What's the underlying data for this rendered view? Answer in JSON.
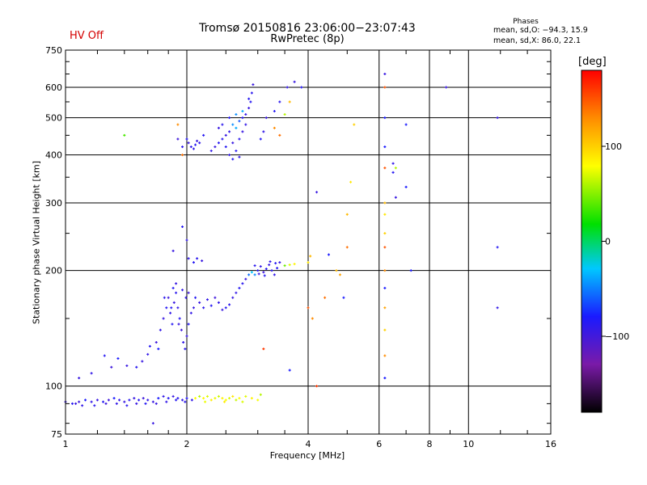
{
  "status": {
    "hv_label": "HV Off"
  },
  "header": {
    "title_line1": "Tromsø 20150816 23:06:00−23:07:43",
    "title_line2": "RwPretec (8p)"
  },
  "phase_box": {
    "title": "Phases",
    "line1": "mean, sd,O: −94.3, 15.9",
    "line2": "mean, sd,X:  86.0, 22.1"
  },
  "colorbar": {
    "title": "[deg]",
    "range": [
      -180,
      180
    ],
    "ticks": [
      "100",
      "0",
      "−100"
    ],
    "tick_values": [
      100,
      0,
      -100
    ]
  },
  "chart_data": {
    "type": "scatter",
    "title": "Tromsø 20150816 23:06:00−23:07:43",
    "subtitle": "RwPretec (8p)",
    "xlabel": "Frequency [MHz]",
    "ylabel": "Stationary phase Virtual Height [km]",
    "xscale": "log",
    "yscale": "log",
    "xlim": [
      1,
      16
    ],
    "ylim": [
      75,
      750
    ],
    "xticks": [
      1,
      2,
      4,
      6,
      8,
      10,
      16
    ],
    "xtick_labels": [
      "1",
      "2",
      "4",
      "6",
      "8",
      "10",
      "16"
    ],
    "yticks": [
      75,
      100,
      200,
      300,
      400,
      500,
      600,
      750
    ],
    "ytick_labels": [
      "75",
      "100",
      "200",
      "300",
      "400",
      "500",
      "600",
      "750"
    ],
    "grid": true,
    "color_variable": "phase [deg]",
    "points": [
      [
        1.0,
        91,
        -110
      ],
      [
        1.04,
        90,
        -105
      ],
      [
        1.08,
        91,
        -112
      ],
      [
        1.12,
        92,
        -100
      ],
      [
        1.16,
        91,
        -108
      ],
      [
        1.2,
        92,
        -110
      ],
      [
        1.24,
        91,
        -104
      ],
      [
        1.28,
        92,
        -112
      ],
      [
        1.32,
        93,
        -100
      ],
      [
        1.36,
        92,
        -108
      ],
      [
        1.4,
        91,
        -110
      ],
      [
        1.44,
        92,
        -105
      ],
      [
        1.48,
        93,
        -110
      ],
      [
        1.52,
        92,
        -104
      ],
      [
        1.56,
        93,
        -112
      ],
      [
        1.6,
        92,
        -108
      ],
      [
        1.65,
        91,
        -110
      ],
      [
        1.7,
        93,
        -100
      ],
      [
        1.75,
        94,
        -108
      ],
      [
        1.8,
        93,
        -104
      ],
      [
        1.85,
        94,
        -110
      ],
      [
        1.9,
        93,
        -106
      ],
      [
        1.95,
        92,
        -108
      ],
      [
        2.0,
        93,
        -104
      ],
      [
        1.06,
        90,
        -110
      ],
      [
        1.1,
        89,
        -108
      ],
      [
        1.18,
        89,
        -106
      ],
      [
        1.26,
        90,
        -112
      ],
      [
        1.34,
        90,
        -108
      ],
      [
        1.42,
        89,
        -105
      ],
      [
        1.5,
        90,
        -110
      ],
      [
        1.58,
        90,
        -104
      ],
      [
        1.68,
        90,
        -110
      ],
      [
        1.78,
        91,
        -108
      ],
      [
        1.88,
        92,
        -104
      ],
      [
        1.98,
        91,
        -106
      ],
      [
        2.06,
        92,
        -108
      ],
      [
        2.1,
        93,
        80
      ],
      [
        2.15,
        94,
        60
      ],
      [
        2.2,
        93,
        82
      ],
      [
        2.25,
        94,
        70
      ],
      [
        2.3,
        92,
        88
      ],
      [
        2.35,
        93,
        75
      ],
      [
        2.4,
        94,
        65
      ],
      [
        2.45,
        93,
        85
      ],
      [
        2.5,
        92,
        78
      ],
      [
        2.55,
        93,
        70
      ],
      [
        2.6,
        94,
        90
      ],
      [
        2.65,
        92,
        65
      ],
      [
        2.7,
        93,
        80
      ],
      [
        2.8,
        94,
        72
      ],
      [
        2.9,
        93,
        85
      ],
      [
        3.0,
        92,
        78
      ],
      [
        3.05,
        95,
        60
      ],
      [
        2.22,
        91,
        75
      ],
      [
        2.48,
        91,
        88
      ],
      [
        2.75,
        91,
        70
      ],
      [
        1.65,
        80,
        -110
      ],
      [
        1.08,
        105,
        -110
      ],
      [
        1.16,
        108,
        -108
      ],
      [
        1.25,
        120,
        -104
      ],
      [
        1.3,
        112,
        -112
      ],
      [
        1.35,
        118,
        -100
      ],
      [
        1.42,
        113,
        -110
      ],
      [
        1.5,
        112,
        -105
      ],
      [
        1.55,
        116,
        -110
      ],
      [
        1.6,
        121,
        -108
      ],
      [
        1.62,
        127,
        -104
      ],
      [
        1.68,
        130,
        -112
      ],
      [
        1.7,
        125,
        -100
      ],
      [
        1.72,
        140,
        -108
      ],
      [
        1.75,
        150,
        -110
      ],
      [
        1.78,
        160,
        -104
      ],
      [
        1.8,
        170,
        -112
      ],
      [
        1.82,
        155,
        -108
      ],
      [
        1.84,
        145,
        -104
      ],
      [
        1.86,
        165,
        -110
      ],
      [
        1.88,
        175,
        -106
      ],
      [
        1.9,
        160,
        -108
      ],
      [
        1.92,
        150,
        -104
      ],
      [
        1.94,
        140,
        -112
      ],
      [
        1.96,
        130,
        -108
      ],
      [
        1.98,
        125,
        -106
      ],
      [
        2.0,
        135,
        -110
      ],
      [
        2.02,
        145,
        -104
      ],
      [
        2.05,
        155,
        -108
      ],
      [
        2.08,
        160,
        -110
      ],
      [
        1.76,
        170,
        -106
      ],
      [
        1.83,
        160,
        -104
      ],
      [
        1.91,
        145,
        -110
      ],
      [
        1.99,
        170,
        -108
      ],
      [
        1.85,
        180,
        -104
      ],
      [
        1.88,
        185,
        -110
      ],
      [
        1.95,
        178,
        -108
      ],
      [
        2.02,
        175,
        -112
      ],
      [
        2.1,
        170,
        -104
      ],
      [
        2.15,
        165,
        -110
      ],
      [
        2.2,
        160,
        -106
      ],
      [
        2.25,
        168,
        -108
      ],
      [
        2.3,
        162,
        -104
      ],
      [
        2.35,
        170,
        -112
      ],
      [
        2.4,
        165,
        -108
      ],
      [
        2.45,
        158,
        -110
      ],
      [
        2.5,
        160,
        -104
      ],
      [
        2.55,
        163,
        -106
      ],
      [
        2.6,
        170,
        -110
      ],
      [
        2.65,
        175,
        -108
      ],
      [
        2.7,
        180,
        -104
      ],
      [
        2.75,
        185,
        -106
      ],
      [
        2.8,
        190,
        -110
      ],
      [
        2.85,
        195,
        -70
      ],
      [
        2.9,
        198,
        -40
      ],
      [
        2.95,
        195,
        -60
      ],
      [
        3.0,
        200,
        -104
      ],
      [
        3.05,
        205,
        -108
      ],
      [
        3.1,
        198,
        -112
      ],
      [
        3.15,
        202,
        -104
      ],
      [
        3.2,
        207,
        -110
      ],
      [
        3.25,
        200,
        -106
      ],
      [
        3.3,
        195,
        -108
      ],
      [
        3.35,
        203,
        -104
      ],
      [
        3.4,
        210,
        -110
      ],
      [
        3.5,
        206,
        40
      ],
      [
        3.6,
        207,
        70
      ],
      [
        3.7,
        208,
        85
      ],
      [
        2.95,
        206,
        -106
      ],
      [
        3.02,
        196,
        -110
      ],
      [
        3.12,
        194,
        -104
      ],
      [
        3.22,
        211,
        -108
      ],
      [
        3.32,
        209,
        -104
      ],
      [
        1.85,
        225,
        -110
      ],
      [
        2.02,
        215,
        -108
      ],
      [
        2.08,
        210,
        -104
      ],
      [
        2.12,
        215,
        -106
      ],
      [
        2.18,
        212,
        -110
      ],
      [
        1.95,
        260,
        -104
      ],
      [
        2.0,
        240,
        -108
      ],
      [
        2.0,
        440,
        -104
      ],
      [
        2.02,
        430,
        -110
      ],
      [
        2.05,
        420,
        -106
      ],
      [
        2.08,
        415,
        -108
      ],
      [
        2.1,
        425,
        -104
      ],
      [
        2.12,
        435,
        -110
      ],
      [
        2.15,
        430,
        -108
      ],
      [
        2.2,
        450,
        -104
      ],
      [
        1.9,
        440,
        -112
      ],
      [
        1.95,
        420,
        -106
      ],
      [
        2.3,
        410,
        -108
      ],
      [
        2.35,
        420,
        -110
      ],
      [
        2.4,
        430,
        -104
      ],
      [
        2.45,
        440,
        -106
      ],
      [
        2.5,
        450,
        -110
      ],
      [
        2.55,
        460,
        -108
      ],
      [
        2.6,
        480,
        -60
      ],
      [
        2.65,
        470,
        -50
      ],
      [
        2.7,
        490,
        -80
      ],
      [
        2.75,
        500,
        -104
      ],
      [
        2.8,
        510,
        -108
      ],
      [
        2.85,
        530,
        -110
      ],
      [
        2.88,
        550,
        -104
      ],
      [
        2.9,
        580,
        -106
      ],
      [
        2.92,
        610,
        -110
      ],
      [
        2.5,
        420,
        -104
      ],
      [
        2.55,
        400,
        -108
      ],
      [
        2.6,
        430,
        -110
      ],
      [
        2.65,
        410,
        -104
      ],
      [
        2.7,
        440,
        -106
      ],
      [
        2.75,
        460,
        -110
      ],
      [
        2.8,
        480,
        -108
      ],
      [
        2.6,
        390,
        -104
      ],
      [
        2.7,
        395,
        -108
      ],
      [
        2.4,
        470,
        -110
      ],
      [
        2.45,
        480,
        -106
      ],
      [
        2.55,
        500,
        -104
      ],
      [
        2.65,
        510,
        -60
      ],
      [
        2.75,
        520,
        -50
      ],
      [
        2.85,
        560,
        -104
      ],
      [
        3.05,
        440,
        -104
      ],
      [
        3.1,
        460,
        -108
      ],
      [
        3.15,
        500,
        -110
      ],
      [
        3.3,
        520,
        -104
      ],
      [
        3.4,
        550,
        -106
      ],
      [
        3.55,
        600,
        -108
      ],
      [
        3.85,
        600,
        -104
      ],
      [
        1.4,
        450,
        30
      ],
      [
        1.9,
        480,
        130
      ],
      [
        1.95,
        400,
        140
      ],
      [
        3.3,
        470,
        130
      ],
      [
        3.4,
        450,
        140
      ],
      [
        3.5,
        510,
        60
      ],
      [
        3.6,
        550,
        110
      ],
      [
        3.7,
        620,
        -110
      ],
      [
        4.0,
        210,
        90
      ],
      [
        4.05,
        218,
        110
      ],
      [
        4.0,
        160,
        150
      ],
      [
        4.1,
        150,
        130
      ],
      [
        4.2,
        100,
        160
      ],
      [
        4.4,
        170,
        140
      ],
      [
        4.5,
        220,
        -100
      ],
      [
        4.7,
        200,
        110
      ],
      [
        4.8,
        195,
        120
      ],
      [
        4.9,
        170,
        -100
      ],
      [
        5.0,
        230,
        140
      ],
      [
        5.0,
        280,
        110
      ],
      [
        5.1,
        340,
        90
      ],
      [
        5.2,
        480,
        100
      ],
      [
        3.1,
        125,
        160
      ],
      [
        3.6,
        110,
        -100
      ],
      [
        4.2,
        320,
        -110
      ],
      [
        6.2,
        650,
        -110
      ],
      [
        6.2,
        600,
        150
      ],
      [
        6.2,
        500,
        -100
      ],
      [
        6.2,
        420,
        -100
      ],
      [
        6.2,
        370,
        150
      ],
      [
        6.2,
        300,
        110
      ],
      [
        6.2,
        280,
        90
      ],
      [
        6.2,
        250,
        100
      ],
      [
        6.2,
        230,
        150
      ],
      [
        6.2,
        200,
        130
      ],
      [
        6.2,
        180,
        -100
      ],
      [
        6.2,
        160,
        120
      ],
      [
        6.2,
        140,
        100
      ],
      [
        6.2,
        120,
        130
      ],
      [
        6.2,
        105,
        -100
      ],
      [
        6.5,
        360,
        -104
      ],
      [
        6.6,
        310,
        -110
      ],
      [
        6.5,
        380,
        -108
      ],
      [
        7.0,
        330,
        -100
      ],
      [
        7.0,
        480,
        -100
      ],
      [
        7.2,
        200,
        -100
      ],
      [
        8.8,
        600,
        -110
      ],
      [
        11.8,
        500,
        -110
      ],
      [
        11.8,
        230,
        -104
      ],
      [
        11.8,
        160,
        -108
      ],
      [
        6.6,
        370,
        60
      ]
    ]
  }
}
